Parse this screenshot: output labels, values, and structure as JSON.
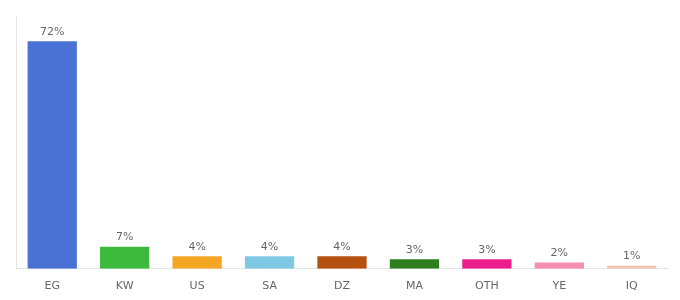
{
  "chart_data": {
    "type": "bar",
    "categories": [
      "EG",
      "KW",
      "US",
      "SA",
      "DZ",
      "MA",
      "OTH",
      "YE",
      "IQ"
    ],
    "values": [
      72,
      7,
      4,
      4,
      4,
      3,
      3,
      2,
      1
    ],
    "value_labels": [
      "72%",
      "7%",
      "4%",
      "4%",
      "4%",
      "3%",
      "3%",
      "2%",
      "1%"
    ],
    "colors": [
      "#4a72d4",
      "#3dba3d",
      "#f5a623",
      "#7ec8e3",
      "#b5500f",
      "#2e7d1e",
      "#e91e8c",
      "#f48fb1",
      "#f4c2b0"
    ],
    "ylim": [
      0,
      80
    ],
    "grid": false,
    "legend": false,
    "data_labels": true,
    "tick_labels": "x"
  }
}
